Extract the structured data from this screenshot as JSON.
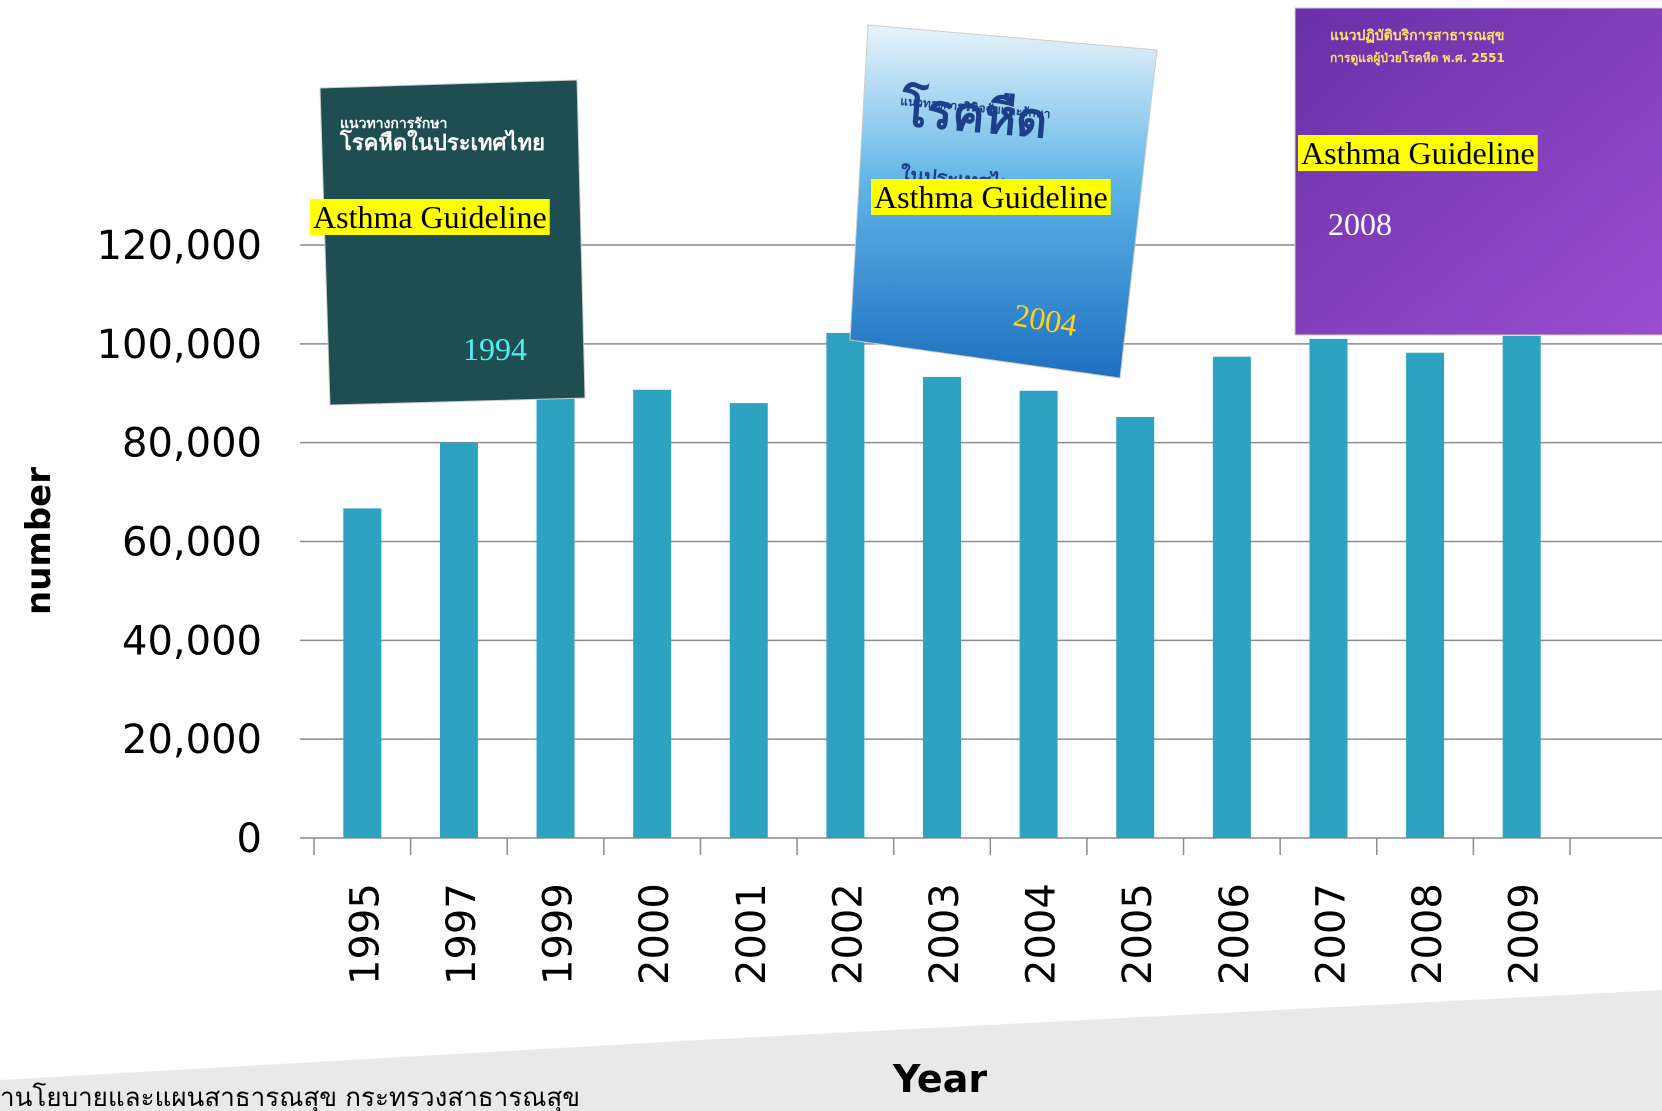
{
  "chart_data": {
    "type": "bar",
    "categories": [
      "1995",
      "1997",
      "1999",
      "2000",
      "2001",
      "2002",
      "2003",
      "2004",
      "2005",
      "2006",
      "2007",
      "2008",
      "2009"
    ],
    "values": [
      66700,
      80000,
      90000,
      90700,
      88000,
      102200,
      93300,
      90500,
      85200,
      97400,
      101000,
      98200,
      101600
    ],
    "color": "#2ea3c1",
    "ylim": [
      0,
      120000
    ],
    "yticks": [
      0,
      {
        "value": 20000,
        "label": "20,000"
      },
      {
        "value": 40000,
        "label": "40,000"
      },
      {
        "value": 60000,
        "label": "60,000"
      },
      {
        "value": 80000,
        "label": "80,000"
      },
      {
        "value": 100000,
        "label": "100,000"
      },
      {
        "value": 120000,
        "label": "120,000"
      }
    ],
    "grid": true,
    "xlabel": "Year",
    "ylabel": "number",
    "annotations": [
      {
        "label": "Asthma Guideline",
        "year": "1994",
        "cover": [
          "แนวทางการรักษา",
          "โรคหืดในประเทศไทย"
        ]
      },
      {
        "label": "Asthma Guideline",
        "year": "2004",
        "cover": [
          "แนวทางการวินิจฉัยและรักษา",
          "โรคหืด",
          "ในประเทศไทย"
        ]
      },
      {
        "label": "Asthma Guideline",
        "year": "2008",
        "cover": [
          "แนวปฏิบัติบริการสาธารณสุข",
          "การดูแลผู้ป่วยโรคหืด พ.ศ. 2551"
        ]
      }
    ],
    "source": "านโยบายและแผนสาธารณสุข กระทรวงสาธารณสุข"
  }
}
